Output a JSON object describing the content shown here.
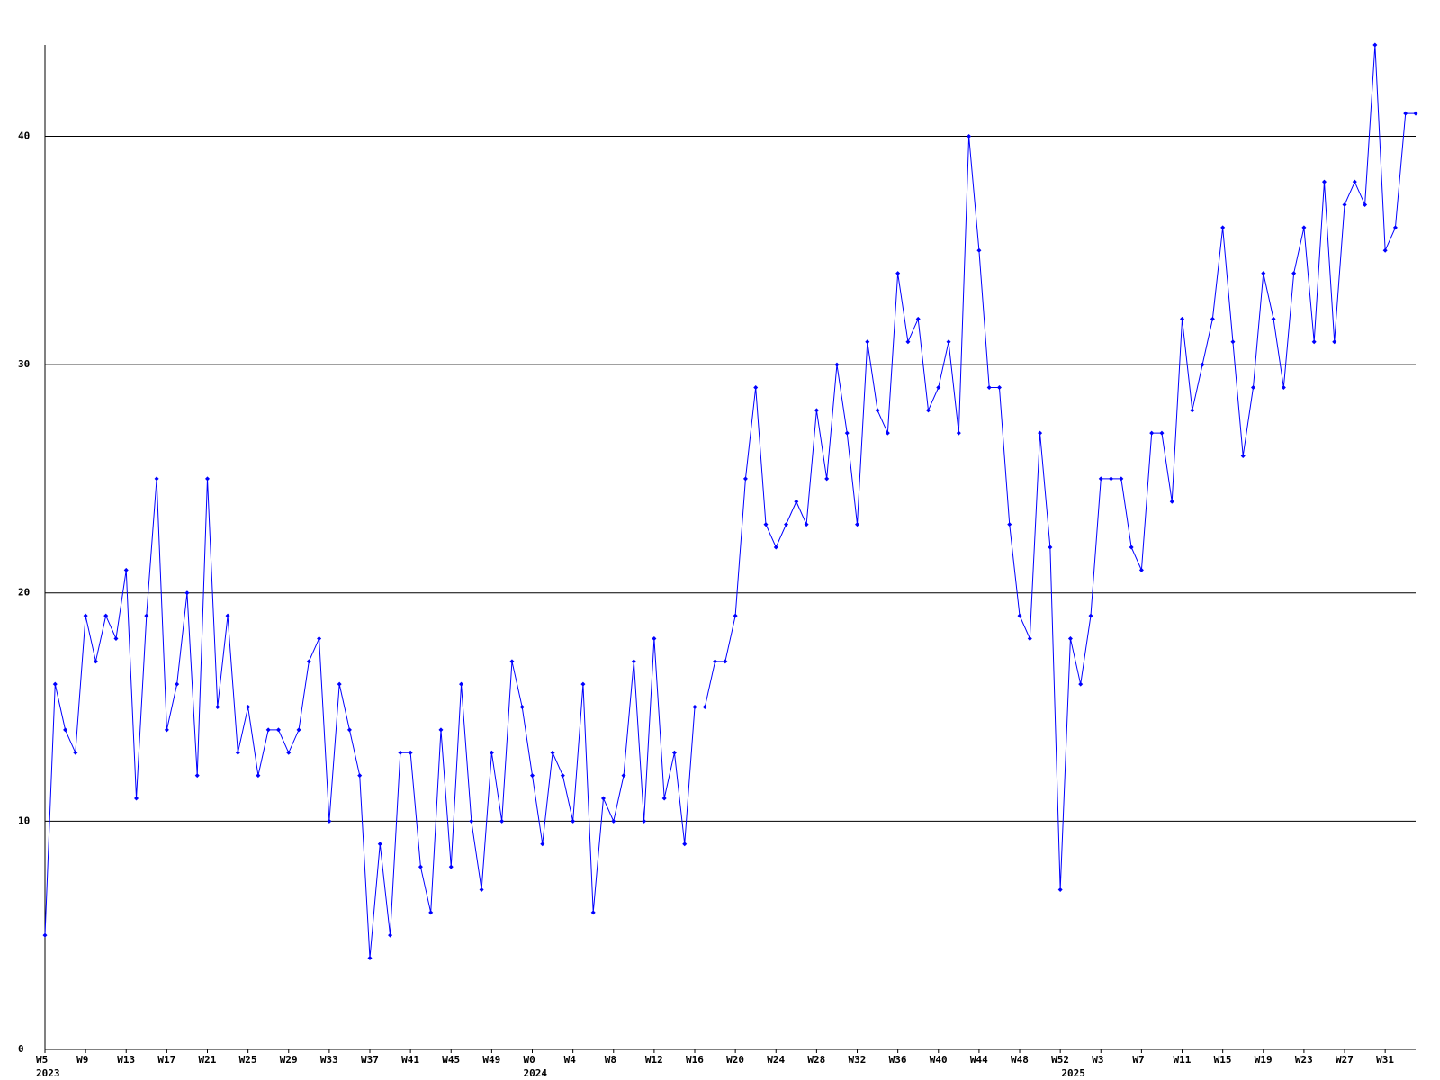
{
  "chart_data": {
    "type": "line",
    "categories": [
      "W5",
      null,
      null,
      null,
      "W9",
      null,
      null,
      null,
      "W13",
      null,
      null,
      null,
      "W17",
      null,
      null,
      null,
      "W21",
      null,
      null,
      null,
      "W25",
      null,
      null,
      null,
      "W29",
      null,
      null,
      null,
      "W33",
      null,
      null,
      null,
      "W37",
      null,
      null,
      null,
      "W41",
      null,
      null,
      null,
      "W45",
      null,
      null,
      null,
      "W49",
      null,
      null,
      null,
      "W0",
      null,
      null,
      null,
      "W4",
      null,
      null,
      null,
      "W8",
      null,
      null,
      null,
      "W12",
      null,
      null,
      null,
      "W16",
      null,
      null,
      null,
      "W20",
      null,
      null,
      null,
      "W24",
      null,
      null,
      null,
      "W28",
      null,
      null,
      null,
      "W32",
      null,
      null,
      null,
      "W36",
      null,
      null,
      null,
      "W40",
      null,
      null,
      null,
      "W44",
      null,
      null,
      null,
      "W48",
      null,
      null,
      null,
      "W52",
      null,
      null,
      null,
      "W3",
      null,
      null,
      null,
      "W7",
      null,
      null,
      null,
      "W11",
      null,
      null,
      null,
      "W15",
      null,
      null,
      null,
      "W19",
      null,
      null,
      null,
      "W23",
      null,
      null,
      null,
      "W27",
      null,
      null,
      null,
      "W31",
      null,
      null,
      null
    ],
    "group_labels": [
      "2023",
      null,
      null,
      null,
      null,
      null,
      null,
      null,
      null,
      null,
      null,
      null,
      null,
      null,
      null,
      null,
      null,
      null,
      null,
      null,
      null,
      null,
      null,
      null,
      null,
      null,
      null,
      null,
      null,
      null,
      null,
      null,
      null,
      null,
      null,
      null,
      null,
      null,
      null,
      null,
      null,
      null,
      null,
      null,
      null,
      null,
      null,
      null,
      "2024",
      null,
      null,
      null,
      null,
      null,
      null,
      null,
      null,
      null,
      null,
      null,
      null,
      null,
      null,
      null,
      null,
      null,
      null,
      null,
      null,
      null,
      null,
      null,
      null,
      null,
      null,
      null,
      null,
      null,
      null,
      null,
      null,
      null,
      null,
      null,
      null,
      null,
      null,
      null,
      null,
      null,
      null,
      null,
      null,
      null,
      null,
      null,
      null,
      null,
      null,
      null,
      null,
      "2025",
      null,
      null,
      null,
      null,
      null,
      null,
      null,
      null,
      null,
      null,
      null,
      null,
      null,
      null,
      null,
      null,
      null,
      null,
      null,
      null,
      null,
      null,
      null,
      null,
      null,
      null,
      null,
      null,
      null,
      null,
      null,
      null,
      null,
      null
    ],
    "series": [
      {
        "color": "#0000ff",
        "values": [
          5,
          16,
          14,
          13,
          19,
          17,
          19,
          18,
          21,
          11,
          19,
          25,
          14,
          16,
          20,
          12,
          25,
          15,
          19,
          13,
          15,
          12,
          14,
          14,
          13,
          14,
          17,
          18,
          10,
          16,
          14,
          12,
          4,
          9,
          5,
          13,
          13,
          8,
          6,
          14,
          8,
          16,
          10,
          7,
          13,
          10,
          17,
          15,
          12,
          9,
          13,
          12,
          10,
          16,
          6,
          11,
          10,
          12,
          17,
          10,
          18,
          11,
          13,
          9,
          15,
          15,
          17,
          17,
          19,
          25,
          29,
          23,
          22,
          23,
          24,
          23,
          28,
          25,
          30,
          27,
          23,
          31,
          28,
          27,
          34,
          31,
          32,
          28,
          29,
          31,
          27,
          40,
          35,
          29,
          29,
          23,
          19,
          18,
          27,
          22,
          7,
          18,
          16,
          19,
          25,
          25,
          25,
          22,
          21,
          27,
          27,
          24,
          32,
          28,
          30,
          32,
          36,
          31,
          26,
          29,
          34,
          32,
          29,
          34,
          36,
          31,
          38,
          31,
          37,
          38,
          37,
          44,
          35,
          36,
          41,
          41
        ]
      }
    ],
    "ylim": [
      0,
      44
    ],
    "yticks": [
      0,
      10,
      20,
      30,
      40
    ],
    "grid": true
  }
}
